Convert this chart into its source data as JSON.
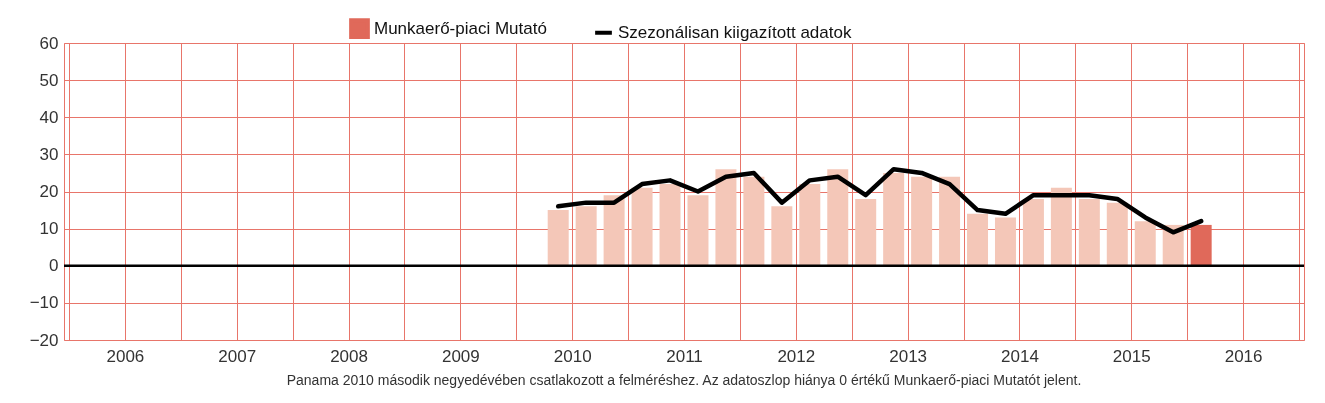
{
  "chart_data": {
    "type": "bar",
    "annotations": [
      "Panama 2010 második negyedévében csatlakozott a felméréshez. Az adatoszlop hiánya 0 értékű Munkaerő-piaci Mutatót jelent."
    ],
    "x": [
      2010.375,
      2010.625,
      2010.875,
      2011.125,
      2011.375,
      2011.625,
      2011.875,
      2012.125,
      2012.375,
      2012.625,
      2012.875,
      2013.125,
      2013.375,
      2013.625,
      2013.875,
      2014.125,
      2014.375,
      2014.625,
      2014.875,
      2015.125,
      2015.375,
      2015.625,
      2015.875,
      2016.125
    ],
    "series": [
      {
        "name": "Munkaerő-piaci Mutató",
        "type": "bar",
        "color": "#e0695a",
        "colors": [
          "#f4c7b8",
          "#f4c7b8",
          "#f4c7b8",
          "#f4c7b8",
          "#f4c7b8",
          "#f4c7b8",
          "#f4c7b8",
          "#f4c7b8",
          "#f4c7b8",
          "#f4c7b8",
          "#f4c7b8",
          "#f4c7b8",
          "#f4c7b8",
          "#f4c7b8",
          "#f4c7b8",
          "#f4c7b8",
          "#f4c7b8",
          "#f4c7b8",
          "#f4c7b8",
          "#f4c7b8",
          "#f4c7b8",
          "#f4c7b8",
          "#f4c7b8",
          "#e0695a"
        ],
        "values": [
          15,
          16,
          19,
          21,
          22,
          19,
          26,
          24,
          16,
          22,
          26,
          18,
          25,
          24,
          24,
          14,
          13,
          18,
          21,
          18,
          17,
          12,
          11,
          11
        ]
      },
      {
        "name": "Szezonálisan kiigazított adatok",
        "type": "line",
        "color": "#000000",
        "values": [
          16,
          17,
          17,
          22,
          23,
          20,
          24,
          25,
          17,
          23,
          24,
          19,
          26,
          25,
          22,
          15,
          14,
          19,
          19,
          19,
          18,
          13,
          9,
          12
        ]
      }
    ],
    "xlim": [
      2006,
      2017
    ],
    "xticks": [
      {
        "value": 2006,
        "label": null
      },
      {
        "value": 2006.5,
        "label": "2006"
      },
      {
        "value": 2007,
        "label": null
      },
      {
        "value": 2007.5,
        "label": "2007"
      },
      {
        "value": 2008,
        "label": null
      },
      {
        "value": 2008.5,
        "label": "2008"
      },
      {
        "value": 2009,
        "label": null
      },
      {
        "value": 2009.5,
        "label": "2009"
      },
      {
        "value": 2010,
        "label": null
      },
      {
        "value": 2010.5,
        "label": "2010"
      },
      {
        "value": 2011,
        "label": null
      },
      {
        "value": 2011.5,
        "label": "2011"
      },
      {
        "value": 2012,
        "label": null
      },
      {
        "value": 2012.5,
        "label": "2012"
      },
      {
        "value": 2013,
        "label": null
      },
      {
        "value": 2013.5,
        "label": "2013"
      },
      {
        "value": 2014,
        "label": null
      },
      {
        "value": 2014.5,
        "label": "2014"
      },
      {
        "value": 2015,
        "label": null
      },
      {
        "value": 2015.5,
        "label": "2015"
      },
      {
        "value": 2016,
        "label": null
      },
      {
        "value": 2016.5,
        "label": "2016"
      },
      {
        "value": 2017,
        "label": null
      }
    ],
    "ylim": [
      -20,
      60
    ],
    "yticks": [
      -20,
      -10,
      0,
      10,
      20,
      30,
      40,
      50,
      60
    ],
    "ref_lines": [
      {
        "axis": "y",
        "value": 0,
        "color": "#000000"
      }
    ],
    "grid": true,
    "legend": "top",
    "marker": "none",
    "line_style": "solid"
  }
}
